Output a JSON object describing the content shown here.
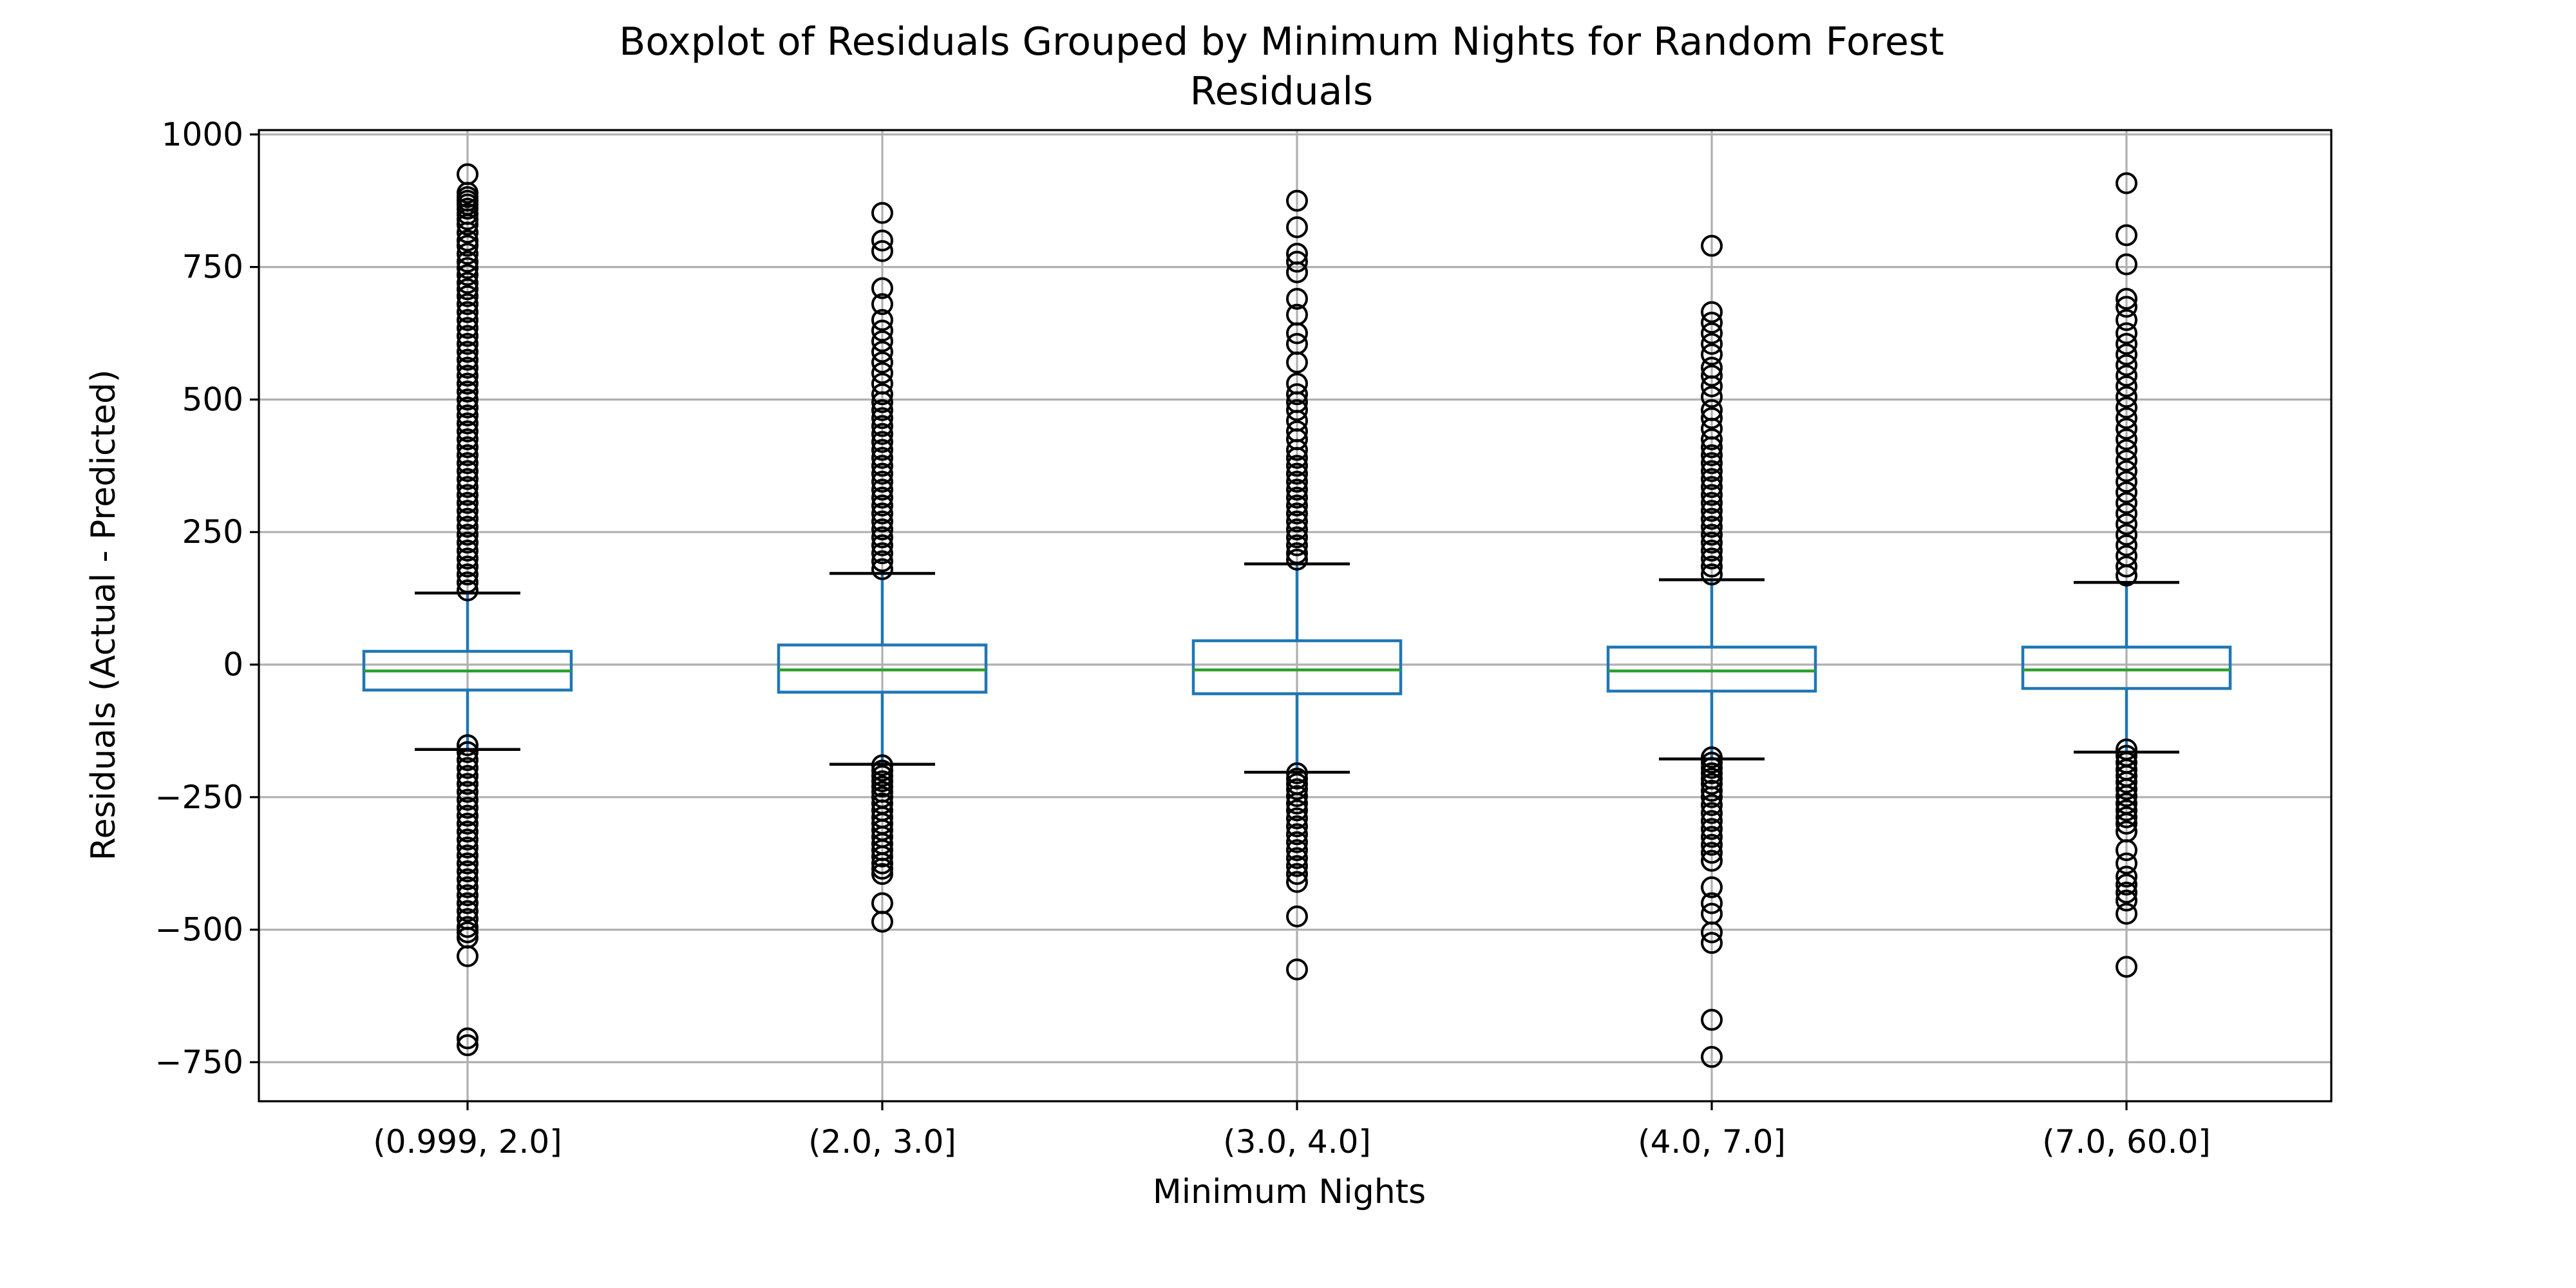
{
  "chart_data": {
    "type": "boxplot",
    "title_lines": [
      "Boxplot of Residuals Grouped by Minimum Nights for Random Forest",
      "Residuals"
    ],
    "xlabel": "Minimum Nights",
    "ylabel": "Residuals (Actual - Predicted)",
    "ylim": [
      -820,
      1010
    ],
    "yticks": [
      1000,
      750,
      500,
      250,
      0,
      -250,
      -500,
      -750
    ],
    "ytick_labels": [
      "1000",
      "750",
      "500",
      "250",
      "0",
      "−250",
      "−500",
      "−750"
    ],
    "grid": true,
    "categories": [
      "(0.999, 2.0]",
      "(2.0, 3.0]",
      "(3.0, 4.0]",
      "(4.0, 7.0]",
      "(7.0, 60.0]"
    ],
    "colors": {
      "box": "#1f77b4",
      "median": "#2ca02c",
      "cap": "#000000",
      "flier": "#000000",
      "grid": "#b0b0b0"
    },
    "boxes": [
      {
        "category": "(0.999, 2.0]",
        "whisker_low": -160,
        "q1": -48,
        "median": -12,
        "q3": 25,
        "whisker_high": 135,
        "fliers": [
          925,
          890,
          882,
          875,
          868,
          860,
          850,
          840,
          830,
          815,
          800,
          790,
          775,
          760,
          748,
          735,
          720,
          708,
          695,
          680,
          665,
          650,
          635,
          620,
          605,
          590,
          575,
          560,
          545,
          530,
          515,
          500,
          485,
          470,
          455,
          440,
          425,
          410,
          395,
          380,
          365,
          350,
          335,
          320,
          305,
          290,
          275,
          260,
          245,
          230,
          215,
          200,
          185,
          170,
          155,
          140,
          -152,
          -165,
          -180,
          -195,
          -210,
          -225,
          -240,
          -255,
          -270,
          -285,
          -300,
          -315,
          -330,
          -345,
          -360,
          -375,
          -390,
          -405,
          -420,
          -435,
          -450,
          -465,
          -480,
          -495,
          -505,
          -515,
          -550,
          -705,
          -718
        ]
      },
      {
        "category": "(2.0, 3.0]",
        "whisker_low": -188,
        "q1": -52,
        "median": -10,
        "q3": 37,
        "whisker_high": 172,
        "fliers": [
          852,
          800,
          780,
          710,
          680,
          650,
          630,
          610,
          590,
          570,
          550,
          530,
          510,
          495,
          480,
          465,
          450,
          435,
          420,
          405,
          390,
          375,
          360,
          345,
          330,
          315,
          300,
          285,
          270,
          255,
          240,
          225,
          210,
          195,
          180,
          -190,
          -200,
          -210,
          -220,
          -230,
          -240,
          -250,
          -262,
          -275,
          -288,
          -300,
          -312,
          -325,
          -338,
          -350,
          -362,
          -375,
          -385,
          -395,
          -450,
          -485
        ]
      },
      {
        "category": "(3.0, 4.0]",
        "whisker_low": -203,
        "q1": -55,
        "median": -10,
        "q3": 45,
        "whisker_high": 190,
        "fliers": [
          875,
          825,
          775,
          760,
          740,
          690,
          660,
          625,
          605,
          570,
          530,
          510,
          495,
          480,
          460,
          440,
          425,
          405,
          390,
          375,
          360,
          345,
          330,
          315,
          300,
          285,
          270,
          255,
          240,
          225,
          210,
          198,
          -205,
          -215,
          -225,
          -235,
          -248,
          -262,
          -275,
          -290,
          -305,
          -320,
          -335,
          -350,
          -365,
          -380,
          -395,
          -410,
          -475,
          -575
        ]
      },
      {
        "category": "(4.0, 7.0]",
        "whisker_low": -178,
        "q1": -50,
        "median": -12,
        "q3": 33,
        "whisker_high": 160,
        "fliers": [
          790,
          665,
          645,
          625,
          605,
          585,
          560,
          545,
          525,
          505,
          480,
          465,
          445,
          425,
          410,
          395,
          380,
          365,
          350,
          335,
          320,
          305,
          290,
          275,
          260,
          245,
          230,
          215,
          200,
          185,
          170,
          -175,
          -185,
          -195,
          -205,
          -215,
          -225,
          -238,
          -250,
          -265,
          -280,
          -295,
          -310,
          -325,
          -340,
          -355,
          -370,
          -420,
          -450,
          -470,
          -505,
          -525,
          -670,
          -740
        ]
      },
      {
        "category": "(7.0, 60.0]",
        "whisker_low": -165,
        "q1": -45,
        "median": -10,
        "q3": 33,
        "whisker_high": 155,
        "fliers": [
          908,
          810,
          755,
          690,
          675,
          650,
          625,
          605,
          585,
          565,
          545,
          525,
          505,
          485,
          465,
          445,
          425,
          405,
          385,
          365,
          345,
          325,
          305,
          285,
          265,
          245,
          225,
          205,
          185,
          168,
          -160,
          -172,
          -185,
          -198,
          -210,
          -222,
          -235,
          -248,
          -262,
          -275,
          -288,
          -300,
          -315,
          -350,
          -375,
          -400,
          -415,
          -430,
          -445,
          -470,
          -570
        ]
      }
    ]
  }
}
